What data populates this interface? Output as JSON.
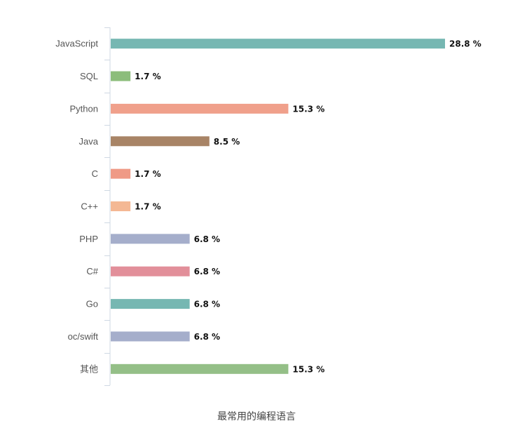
{
  "caption": "最常用的编程语言",
  "chart_data": {
    "type": "bar",
    "orientation": "horizontal",
    "title": "最常用的编程语言",
    "categories": [
      "JavaScript",
      "SQL",
      "Python",
      "Java",
      "C",
      "C++",
      "PHP",
      "C#",
      "Go",
      "oc/swift",
      "其他"
    ],
    "values": [
      28.8,
      1.7,
      15.3,
      8.5,
      1.7,
      1.7,
      6.8,
      6.8,
      6.8,
      6.8,
      15.3
    ],
    "value_labels": [
      "28.8 %",
      "1.7 %",
      "15.3 %",
      "8.5 %",
      "1.7 %",
      "1.7 %",
      "6.8 %",
      "6.8 %",
      "6.8 %",
      "6.8 %",
      "15.3 %"
    ],
    "colors": [
      "#76b7b2",
      "#8cbd7b",
      "#f0a08b",
      "#a88466",
      "#ef9a86",
      "#f4b894",
      "#a5aecb",
      "#e28f9a",
      "#76b7b2",
      "#a5aecb",
      "#94bf87"
    ],
    "xlim": [
      0,
      28.8
    ],
    "grid": false,
    "legend": "none"
  }
}
